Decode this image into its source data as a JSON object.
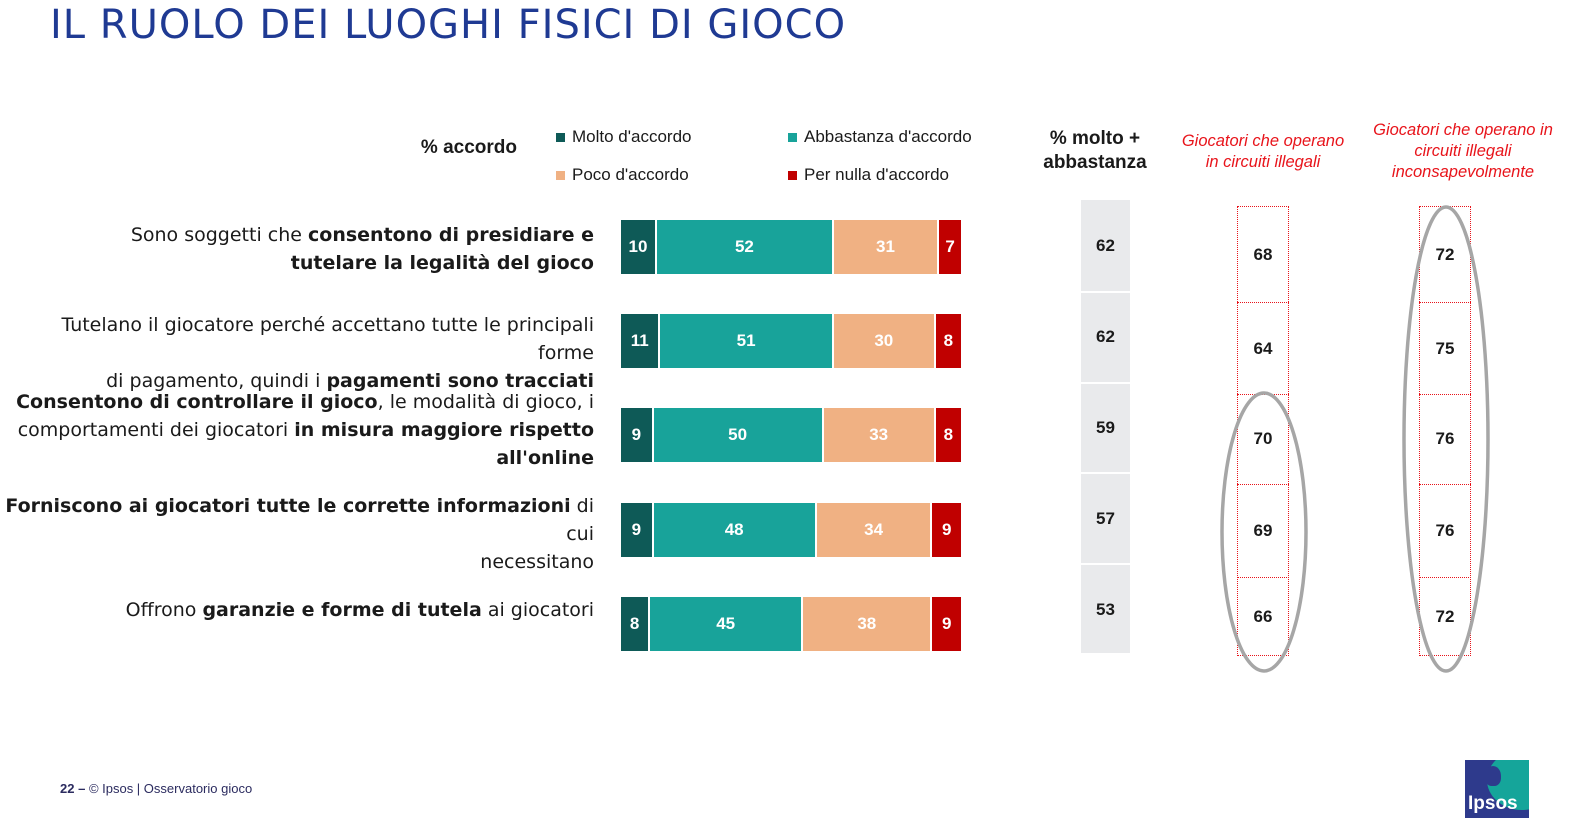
{
  "title": "IL RUOLO DEI LUOGHI FISICI DI GIOCO",
  "accordo_label": "% accordo",
  "legend": [
    {
      "label": "Molto d'accordo",
      "color": "#0e5a57"
    },
    {
      "label": "Abbastanza d'accordo",
      "color": "#18a39a"
    },
    {
      "label": "Poco d'accordo",
      "color": "#f0b183"
    },
    {
      "label": "Per nulla d'accordo",
      "color": "#c00000"
    }
  ],
  "col_total_header": {
    "line1": "% molto +",
    "line2": "abbastanza"
  },
  "col_illegali_header": {
    "line1": "Giocatori che operano",
    "line2": "in circuiti illegali"
  },
  "col_inconsapevoli_header": {
    "line1": "Giocatori che operano in",
    "line2": "circuiti illegali",
    "line3": "inconsapevolmente"
  },
  "rows": [
    {
      "label_lines": [
        [
          {
            "t": "Sono soggetti che "
          },
          {
            "t": "consentono di presidiare e",
            "b": true
          }
        ],
        [
          {
            "t": "tutelare la legalità del gioco",
            "b": true
          }
        ]
      ]
    },
    {
      "label_lines": [
        [
          {
            "t": "Tutelano il giocatore perché accettano tutte le principali forme"
          }
        ],
        [
          {
            "t": "di pagamento, quindi i "
          },
          {
            "t": "pagamenti sono tracciati",
            "b": true
          }
        ]
      ]
    },
    {
      "label_lines": [
        [
          {
            "t": "Consentono di controllare il gioco",
            "b": true
          },
          {
            "t": ", le modalità di gioco, i"
          }
        ],
        [
          {
            "t": "comportamenti dei giocatori "
          },
          {
            "t": "in misura maggiore rispetto",
            "b": true
          }
        ],
        [
          {
            "t": "all'online",
            "b": true
          }
        ]
      ]
    },
    {
      "label_lines": [
        [
          {
            "t": "Forniscono ai giocatori tutte le corrette informazioni",
            "b": true
          },
          {
            "t": " di cui"
          }
        ],
        [
          {
            "t": "necessitano"
          }
        ]
      ]
    },
    {
      "label_lines": [
        [
          {
            "t": "Offrono "
          },
          {
            "t": "garanzie e forme di tutela",
            "b": true
          },
          {
            "t": " ai giocatori"
          }
        ]
      ]
    }
  ],
  "chart_data": {
    "type": "bar",
    "stacked": true,
    "orientation": "horizontal",
    "categories": [
      "Sono soggetti che consentono di presidiare e tutelare la legalità del gioco",
      "Tutelano il giocatore perché accettano tutte le principali forme di pagamento, quindi i pagamenti sono tracciati",
      "Consentono di controllare il gioco, le modalità di gioco, i comportamenti dei giocatori in misura maggiore rispetto all'online",
      "Forniscono ai giocatori tutte le corrette informazioni di cui necessitano",
      "Offrono garanzie e forme di tutela ai giocatori"
    ],
    "series": [
      {
        "name": "Molto d'accordo",
        "values": [
          10,
          11,
          9,
          9,
          8
        ]
      },
      {
        "name": "Abbastanza d'accordo",
        "values": [
          52,
          51,
          50,
          48,
          45
        ]
      },
      {
        "name": "Poco d'accordo",
        "values": [
          31,
          30,
          33,
          34,
          38
        ]
      },
      {
        "name": "Per nulla d'accordo",
        "values": [
          7,
          8,
          8,
          9,
          9
        ]
      }
    ],
    "totals_molto_abbastanza": [
      62,
      62,
      59,
      57,
      53
    ],
    "giocatori_circuiti_illegali": [
      68,
      64,
      70,
      69,
      66
    ],
    "giocatori_circuiti_illegali_inconsapevolmente": [
      72,
      75,
      76,
      76,
      72
    ],
    "xlim": [
      0,
      100
    ],
    "legend_position": "top"
  },
  "footer": {
    "page": "22 –",
    "text": "© Ipsos |  Osservatorio gioco"
  },
  "logo_text": "Ipsos"
}
